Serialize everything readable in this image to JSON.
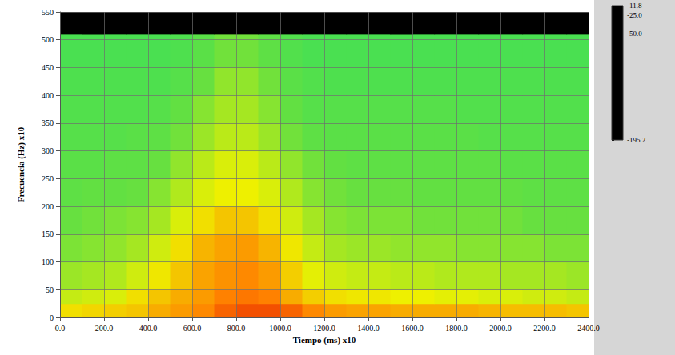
{
  "chart_data": {
    "type": "heatmap",
    "x_label": "Tiempo (ms) x10",
    "y_label": "Frecuencia (Hz) x10",
    "xlim": [
      0,
      2400
    ],
    "ylim": [
      0,
      550
    ],
    "xticks": [
      {
        "value": 0,
        "label": "0.0"
      },
      {
        "value": 200,
        "label": "200.0"
      },
      {
        "value": 400,
        "label": "400.0"
      },
      {
        "value": 600,
        "label": "600.0"
      },
      {
        "value": 800,
        "label": "800.0"
      },
      {
        "value": 1000,
        "label": "1000.0"
      },
      {
        "value": 1200,
        "label": "1200.0"
      },
      {
        "value": 1400,
        "label": "1400.0"
      },
      {
        "value": 1600,
        "label": "1600.0"
      },
      {
        "value": 1800,
        "label": "1800.0"
      },
      {
        "value": 2000,
        "label": "2000.0"
      },
      {
        "value": 2200,
        "label": "2200.0"
      },
      {
        "value": 2400,
        "label": "2400.0"
      }
    ],
    "yticks": [
      0,
      50,
      100,
      150,
      200,
      250,
      300,
      350,
      400,
      450,
      500,
      550
    ],
    "grid": true,
    "x_edges": [
      0,
      100,
      200,
      300,
      400,
      500,
      600,
      700,
      800,
      900,
      1000,
      1100,
      1200,
      1300,
      1400,
      1500,
      1600,
      1700,
      1800,
      1900,
      2000,
      2100,
      2200,
      2300,
      2400
    ],
    "y_edges": [
      0,
      25,
      50,
      100,
      150,
      200,
      250,
      300,
      350,
      400,
      450,
      510,
      550
    ],
    "cells": [
      [
        -36,
        -35,
        -34,
        -33,
        -30,
        -28,
        -26,
        -22,
        -20,
        -20,
        -22,
        -26,
        -28,
        -29,
        -29,
        -30,
        -30,
        -30,
        -30,
        -31,
        -32,
        -32,
        -32,
        -33
      ],
      [
        -42,
        -41,
        -40,
        -36,
        -33,
        -30,
        -28,
        -25,
        -24,
        -25,
        -30,
        -34,
        -36,
        -37,
        -37,
        -38,
        -38,
        -39,
        -39,
        -40,
        -40,
        -41,
        -41,
        -42
      ],
      [
        -46,
        -45,
        -44,
        -41,
        -37,
        -33,
        -29,
        -27,
        -26,
        -28,
        -34,
        -39,
        -41,
        -42,
        -42,
        -43,
        -43,
        -44,
        -44,
        -44,
        -45,
        -45,
        -45,
        -46
      ],
      [
        -49,
        -48,
        -47,
        -45,
        -41,
        -36,
        -31,
        -29,
        -28,
        -31,
        -37,
        -42,
        -45,
        -46,
        -46,
        -47,
        -47,
        -47,
        -48,
        -48,
        -48,
        -48,
        -49,
        -49
      ],
      [
        -51,
        -50,
        -49,
        -48,
        -45,
        -40,
        -36,
        -33,
        -33,
        -36,
        -41,
        -45,
        -48,
        -49,
        -49,
        -49,
        -50,
        -50,
        -50,
        -50,
        -50,
        -51,
        -51,
        -51
      ],
      [
        -53,
        -52,
        -52,
        -51,
        -48,
        -44,
        -40,
        -38,
        -38,
        -40,
        -44,
        -48,
        -50,
        -51,
        -51,
        -51,
        -52,
        -52,
        -52,
        -52,
        -52,
        -53,
        -53,
        -53
      ],
      [
        -54,
        -54,
        -53,
        -53,
        -51,
        -47,
        -43,
        -40,
        -40,
        -43,
        -47,
        -50,
        -52,
        -53,
        -53,
        -53,
        -53,
        -53,
        -53,
        -53,
        -54,
        -54,
        -54,
        -54
      ],
      [
        -55,
        -55,
        -55,
        -54,
        -53,
        -50,
        -46,
        -43,
        -43,
        -46,
        -50,
        -53,
        -54,
        -54,
        -54,
        -54,
        -54,
        -54,
        -54,
        -55,
        -55,
        -55,
        -55,
        -55
      ],
      [
        -56,
        -56,
        -56,
        -56,
        -55,
        -52,
        -48,
        -45,
        -45,
        -48,
        -52,
        -55,
        -55,
        -55,
        -55,
        -55,
        -55,
        -55,
        -56,
        -56,
        -56,
        -56,
        -56,
        -56
      ],
      [
        -57,
        -57,
        -57,
        -57,
        -57,
        -55,
        -51,
        -47,
        -47,
        -50,
        -54,
        -56,
        -57,
        -57,
        -57,
        -57,
        -57,
        -57,
        -57,
        -57,
        -57,
        -57,
        -57,
        -57
      ],
      [
        -58,
        -58,
        -58,
        -58,
        -58,
        -57,
        -54,
        -50,
        -50,
        -53,
        -56,
        -58,
        -58,
        -58,
        -58,
        -58,
        -58,
        -58,
        -58,
        -58,
        -58,
        -58,
        -58,
        -58
      ],
      [
        -195.2,
        -195.2,
        -195.2,
        -195.2,
        -195.2,
        -195.2,
        -195.2,
        -195.2,
        -195.2,
        -195.2,
        -195.2,
        -195.2,
        -195.2,
        -195.2,
        -195.2,
        -195.2,
        -195.2,
        -195.2,
        -195.2,
        -195.2,
        -195.2,
        -195.2,
        -195.2,
        -195.2
      ]
    ],
    "colorbar": {
      "range": [
        -195.2,
        -11.8
      ],
      "ticks": [
        -11.8,
        {
          "value": -25,
          "label": "-25.0"
        },
        {
          "value": -50,
          "label": "-50.0"
        },
        -195.2
      ]
    }
  }
}
